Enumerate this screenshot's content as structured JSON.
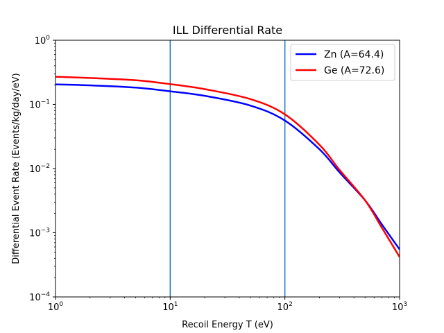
{
  "chart_data": {
    "type": "line",
    "title": "ILL Differential Rate",
    "xlabel": "Recoil Energy T (eV)",
    "ylabel": "Differential Event Rate (Events/kg/day/eV)",
    "xscale": "log",
    "yscale": "log",
    "xlim": [
      1,
      1000
    ],
    "ylim": [
      0.0001,
      1
    ],
    "x_ticks": [
      {
        "base": "10",
        "exp": "0",
        "value": 1
      },
      {
        "base": "10",
        "exp": "1",
        "value": 10
      },
      {
        "base": "10",
        "exp": "2",
        "value": 100
      },
      {
        "base": "10",
        "exp": "3",
        "value": 1000
      }
    ],
    "y_ticks": [
      {
        "base": "10",
        "exp": "−4",
        "value": 0.0001
      },
      {
        "base": "10",
        "exp": "−3",
        "value": 0.001
      },
      {
        "base": "10",
        "exp": "−2",
        "value": 0.01
      },
      {
        "base": "10",
        "exp": "−1",
        "value": 0.1
      },
      {
        "base": "10",
        "exp": "0",
        "value": 1
      }
    ],
    "vertical_lines": [
      10,
      100
    ],
    "vertical_line_color": "#1f77b4",
    "grid": false,
    "legend_position": "top-right",
    "series": [
      {
        "name": "Zn (A=64.4)",
        "color": "#0000ff",
        "x": [
          1,
          2,
          5,
          10,
          20,
          50,
          100,
          200,
          300,
          500,
          700,
          1000
        ],
        "y": [
          0.205,
          0.198,
          0.183,
          0.16,
          0.136,
          0.096,
          0.056,
          0.02,
          0.0087,
          0.0032,
          0.00135,
          0.00055
        ]
      },
      {
        "name": "Ge (A=72.6)",
        "color": "#ff0000",
        "x": [
          1,
          2,
          5,
          10,
          20,
          50,
          100,
          200,
          300,
          500,
          700,
          1000
        ],
        "y": [
          0.27,
          0.258,
          0.238,
          0.207,
          0.173,
          0.121,
          0.07,
          0.0235,
          0.0095,
          0.0032,
          0.0012,
          0.00042
        ]
      }
    ]
  }
}
